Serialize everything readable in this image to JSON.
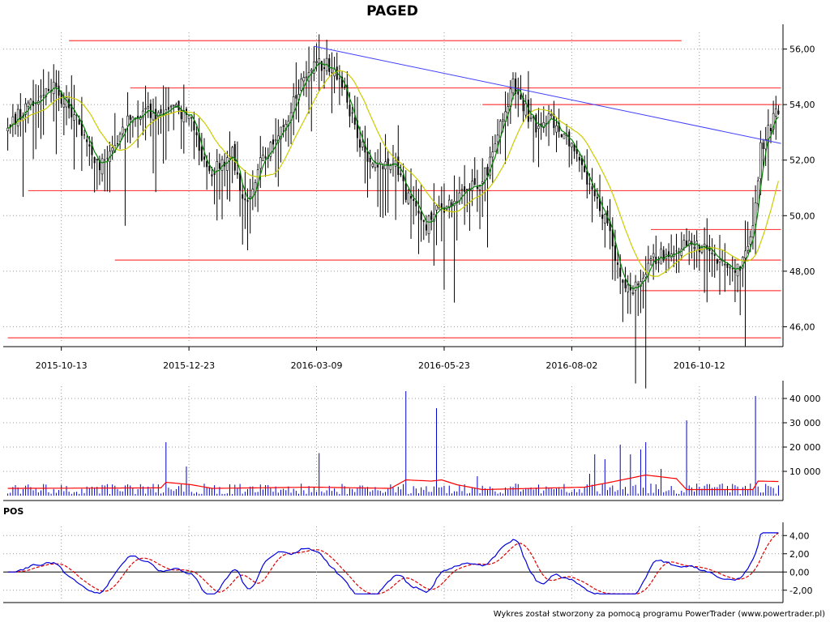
{
  "title": "PAGED",
  "footer": "Wykres został stworzony za pomocą programu PowerTrader (www.powertrader.pl)",
  "colors": {
    "background": "#ffffff",
    "candle": "#000000",
    "short_ma": "#008000",
    "long_ma": "#cccc00",
    "support_resistance": "#ff4040",
    "trendline": "#4040ff",
    "volume_bars": "#0000cc",
    "volume_avg": "#ff0000",
    "pos_line": "#0000dd",
    "pos_signal": "#dd0000",
    "grid": "#999999",
    "axis": "#000000"
  },
  "chart_data": [
    {
      "type": "candlestick",
      "panel": "price",
      "title": "PAGED",
      "date_labels": [
        "2015-10-13",
        "2015-12-23",
        "2016-03-09",
        "2016-05-23",
        "2016-08-02",
        "2016-10-12"
      ],
      "ylim": [
        45.4,
        56.6
      ],
      "yticks": [
        46,
        48,
        50,
        52,
        54,
        56
      ],
      "ytick_labels": [
        "46,00",
        "48,00",
        "50,00",
        "52,00",
        "54,00",
        "56,00"
      ],
      "grid": true,
      "bar_count": 303,
      "close_anchors": [
        [
          0,
          53.2
        ],
        [
          6,
          53.8
        ],
        [
          12,
          54.2
        ],
        [
          18,
          54.6
        ],
        [
          24,
          53.9
        ],
        [
          30,
          52.8
        ],
        [
          36,
          51.8
        ],
        [
          42,
          52.6
        ],
        [
          48,
          53.5
        ],
        [
          54,
          53.8
        ],
        [
          60,
          53.6
        ],
        [
          66,
          53.9
        ],
        [
          72,
          53.3
        ],
        [
          76,
          52.2
        ],
        [
          80,
          51.6
        ],
        [
          84,
          51.9
        ],
        [
          88,
          52.3
        ],
        [
          92,
          50.4
        ],
        [
          95,
          50.6
        ],
        [
          98,
          51.8
        ],
        [
          102,
          52.3
        ],
        [
          106,
          52.8
        ],
        [
          110,
          53.6
        ],
        [
          114,
          54.6
        ],
        [
          120,
          55.5
        ],
        [
          126,
          55.4
        ],
        [
          132,
          54.5
        ],
        [
          136,
          53.1
        ],
        [
          140,
          52.2
        ],
        [
          146,
          51.8
        ],
        [
          152,
          51.9
        ],
        [
          156,
          50.8
        ],
        [
          160,
          50.4
        ],
        [
          164,
          49.6
        ],
        [
          168,
          50.2
        ],
        [
          172,
          50.4
        ],
        [
          176,
          50.6
        ],
        [
          180,
          50.9
        ],
        [
          186,
          51.3
        ],
        [
          190,
          52.1
        ],
        [
          194,
          53.6
        ],
        [
          198,
          54.7
        ],
        [
          204,
          53.6
        ],
        [
          208,
          53.1
        ],
        [
          212,
          53.6
        ],
        [
          218,
          52.9
        ],
        [
          224,
          51.9
        ],
        [
          230,
          50.8
        ],
        [
          236,
          49.4
        ],
        [
          240,
          47.8
        ],
        [
          244,
          47.2
        ],
        [
          248,
          47.6
        ],
        [
          252,
          48.4
        ],
        [
          256,
          48.6
        ],
        [
          262,
          48.8
        ],
        [
          268,
          49.1
        ],
        [
          274,
          48.7
        ],
        [
          280,
          48.2
        ],
        [
          284,
          47.9
        ],
        [
          288,
          48.3
        ],
        [
          292,
          49.6
        ],
        [
          295,
          52.4
        ],
        [
          298,
          53.1
        ],
        [
          302,
          53.8
        ]
      ],
      "series": [
        {
          "name": "",
          "kind": "moving_average_short",
          "color": "#008000"
        },
        {
          "name": "",
          "kind": "moving_average_long",
          "color": "#cccc00"
        }
      ],
      "horizontal_levels": [
        {
          "value": 56.3,
          "from_bar": 24,
          "to_bar": 264
        },
        {
          "value": 54.6,
          "from_bar": 48,
          "to_bar": 303
        },
        {
          "value": 54.0,
          "from_bar": 186,
          "to_bar": 303
        },
        {
          "value": 50.9,
          "from_bar": 8,
          "to_bar": 303
        },
        {
          "value": 49.5,
          "from_bar": 252,
          "to_bar": 303
        },
        {
          "value": 48.4,
          "from_bar": 42,
          "to_bar": 303
        },
        {
          "value": 47.3,
          "from_bar": 248,
          "to_bar": 303
        },
        {
          "value": 45.6,
          "from_bar": 0,
          "to_bar": 303
        }
      ],
      "trendline": {
        "from": [
          120,
          56.1
        ],
        "to": [
          303,
          52.6
        ]
      }
    },
    {
      "type": "bar",
      "panel": "volume",
      "ylim": [
        0,
        45000
      ],
      "yticks": [
        10000,
        20000,
        30000,
        40000
      ],
      "ytick_labels": [
        "10 000",
        "20 000",
        "30 000",
        "40 000"
      ],
      "grid": true,
      "baseline_volume": 2000,
      "spikes": [
        {
          "bar": 62,
          "value": 22000
        },
        {
          "bar": 70,
          "value": 12000
        },
        {
          "bar": 122,
          "value": 17500
        },
        {
          "bar": 156,
          "value": 43000
        },
        {
          "bar": 168,
          "value": 36000
        },
        {
          "bar": 184,
          "value": 8000
        },
        {
          "bar": 230,
          "value": 17000
        },
        {
          "bar": 234,
          "value": 15000
        },
        {
          "bar": 240,
          "value": 21000
        },
        {
          "bar": 244,
          "value": 17000
        },
        {
          "bar": 248,
          "value": 19000
        },
        {
          "bar": 250,
          "value": 22000
        },
        {
          "bar": 266,
          "value": 31000
        },
        {
          "bar": 293,
          "value": 41000
        },
        {
          "bar": 228,
          "value": 9000
        },
        {
          "bar": 256,
          "value": 11000
        }
      ],
      "average_levels": [
        [
          0,
          3000
        ],
        [
          60,
          3200
        ],
        [
          62,
          5500
        ],
        [
          72,
          4500
        ],
        [
          80,
          3000
        ],
        [
          120,
          3500
        ],
        [
          150,
          3000
        ],
        [
          156,
          6500
        ],
        [
          166,
          6000
        ],
        [
          170,
          6500
        ],
        [
          176,
          4500
        ],
        [
          186,
          2500
        ],
        [
          226,
          3500
        ],
        [
          236,
          5500
        ],
        [
          250,
          8500
        ],
        [
          262,
          7000
        ],
        [
          266,
          2500
        ],
        [
          292,
          2500
        ],
        [
          294,
          6000
        ],
        [
          303,
          5800
        ]
      ]
    },
    {
      "type": "line",
      "panel": "oscillator",
      "title": "POS",
      "ylim": [
        -3.0,
        5.0
      ],
      "yticks": [
        -2,
        0,
        2,
        4
      ],
      "ytick_labels": [
        "-2,00",
        "0,00",
        "2,00",
        "4,00"
      ],
      "grid": true,
      "series": [
        {
          "name": "",
          "kind": "oscillator",
          "color": "#0000dd"
        },
        {
          "name": "",
          "kind": "signal",
          "color": "#dd0000",
          "dashed": true
        }
      ]
    }
  ]
}
